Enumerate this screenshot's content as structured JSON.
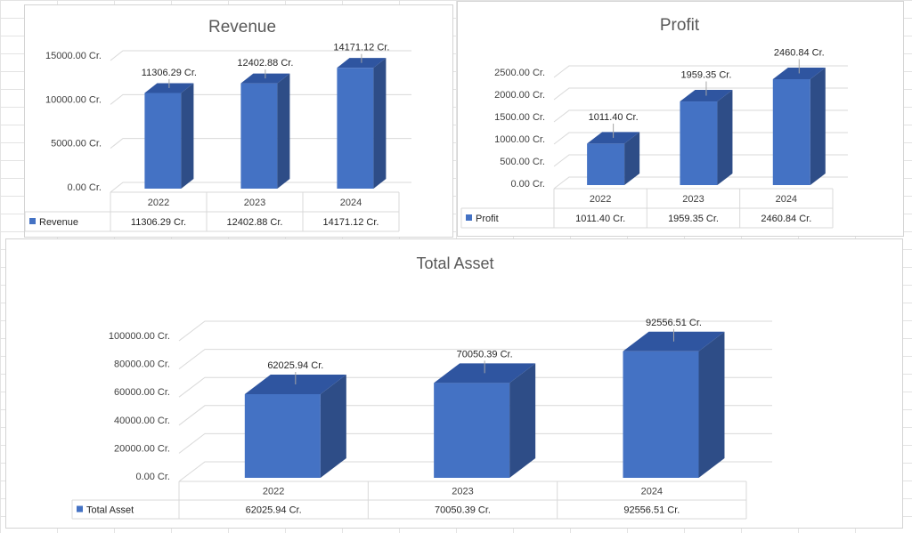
{
  "colors": {
    "bar_front": "#4472c4",
    "bar_side": "#2e4d87",
    "bar_top": "#2f55a0",
    "grid": "#d9d9d9",
    "title": "#595959"
  },
  "chart_data": [
    {
      "type": "bar",
      "style": "3d-column",
      "title": "Revenue",
      "categories": [
        "2022",
        "2023",
        "2024"
      ],
      "series": [
        {
          "name": "Revenue",
          "values": [
            11306.29,
            12402.88,
            14171.12
          ]
        }
      ],
      "data_labels": [
        "11306.29 Cr.",
        "12402.88 Cr.",
        "14171.12 Cr."
      ],
      "table_values": [
        "11306.29 Cr.",
        "12402.88 Cr.",
        "14171.12 Cr."
      ],
      "y_ticks": [
        {
          "value": 0,
          "label": "0.00 Cr."
        },
        {
          "value": 5000,
          "label": "5000.00 Cr."
        },
        {
          "value": 10000,
          "label": "10000.00 Cr."
        },
        {
          "value": 15000,
          "label": "15000.00 Cr."
        }
      ],
      "ylim": [
        0,
        15000
      ],
      "grid": true,
      "legend": "data-table"
    },
    {
      "type": "bar",
      "style": "3d-column",
      "title": "Profit",
      "categories": [
        "2022",
        "2023",
        "2024"
      ],
      "series": [
        {
          "name": "Profit",
          "values": [
            1011.4,
            1959.35,
            2460.84
          ]
        }
      ],
      "data_labels": [
        "1011.40 Cr.",
        "1959.35 Cr.",
        "2460.84 Cr."
      ],
      "table_values": [
        "1011.40 Cr.",
        "1959.35 Cr.",
        "2460.84 Cr."
      ],
      "y_ticks": [
        {
          "value": 0,
          "label": "0.00 Cr."
        },
        {
          "value": 500,
          "label": "500.00 Cr."
        },
        {
          "value": 1000,
          "label": "1000.00 Cr."
        },
        {
          "value": 1500,
          "label": "1500.00 Cr."
        },
        {
          "value": 2000,
          "label": "2000.00 Cr."
        },
        {
          "value": 2500,
          "label": "2500.00 Cr."
        }
      ],
      "ylim": [
        0,
        2500
      ],
      "grid": true,
      "legend": "data-table"
    },
    {
      "type": "bar",
      "style": "3d-column",
      "title": "Total Asset",
      "categories": [
        "2022",
        "2023",
        "2024"
      ],
      "series": [
        {
          "name": "Total Asset",
          "values": [
            62025.94,
            70050.39,
            92556.51
          ]
        }
      ],
      "data_labels": [
        "62025.94 Cr.",
        "70050.39 Cr.",
        "92556.51 Cr."
      ],
      "table_values": [
        "62025.94 Cr.",
        "70050.39 Cr.",
        "92556.51 Cr."
      ],
      "y_ticks": [
        {
          "value": 0,
          "label": "0.00 Cr."
        },
        {
          "value": 20000,
          "label": "20000.00 Cr."
        },
        {
          "value": 40000,
          "label": "40000.00 Cr."
        },
        {
          "value": 60000,
          "label": "60000.00 Cr."
        },
        {
          "value": 80000,
          "label": "80000.00 Cr."
        },
        {
          "value": 100000,
          "label": "100000.00 Cr."
        }
      ],
      "ylim": [
        0,
        100000
      ],
      "grid": true,
      "legend": "data-table"
    }
  ]
}
